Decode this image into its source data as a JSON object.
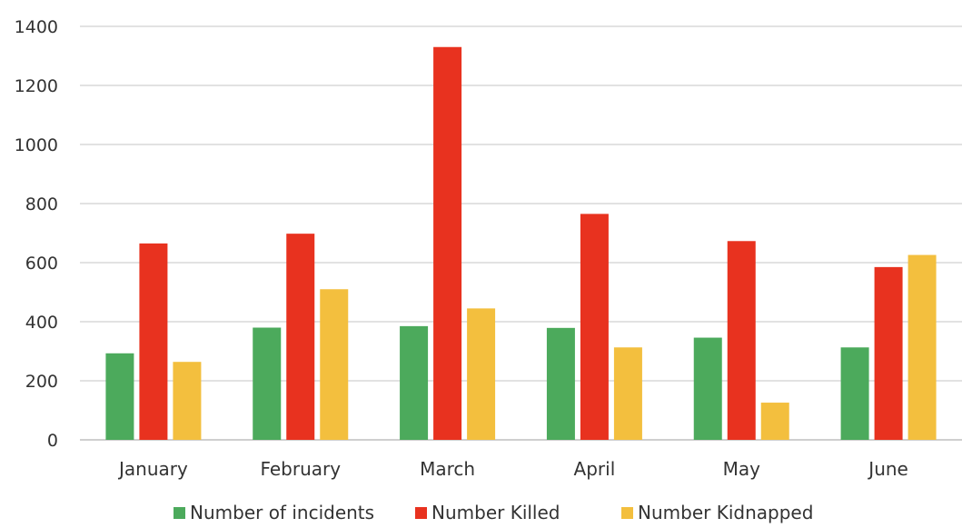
{
  "chart_data": {
    "type": "bar",
    "categories": [
      "January",
      "February",
      "March",
      "April",
      "May",
      "June"
    ],
    "series": [
      {
        "name": "Number of incidents",
        "color": "#4caa5c",
        "values": [
          293,
          380,
          385,
          379,
          346,
          313
        ]
      },
      {
        "name": "Number Killed",
        "color": "#e8321f",
        "values": [
          665,
          698,
          1330,
          765,
          673,
          585
        ]
      },
      {
        "name": "Number Kidnapped",
        "color": "#f3bf3e",
        "values": [
          264,
          510,
          445,
          313,
          126,
          626
        ]
      }
    ],
    "ylim": [
      0,
      1400
    ],
    "yticks": [
      0,
      200,
      400,
      600,
      800,
      1000,
      1200,
      1400
    ],
    "grid": true,
    "legend_position": "bottom"
  }
}
